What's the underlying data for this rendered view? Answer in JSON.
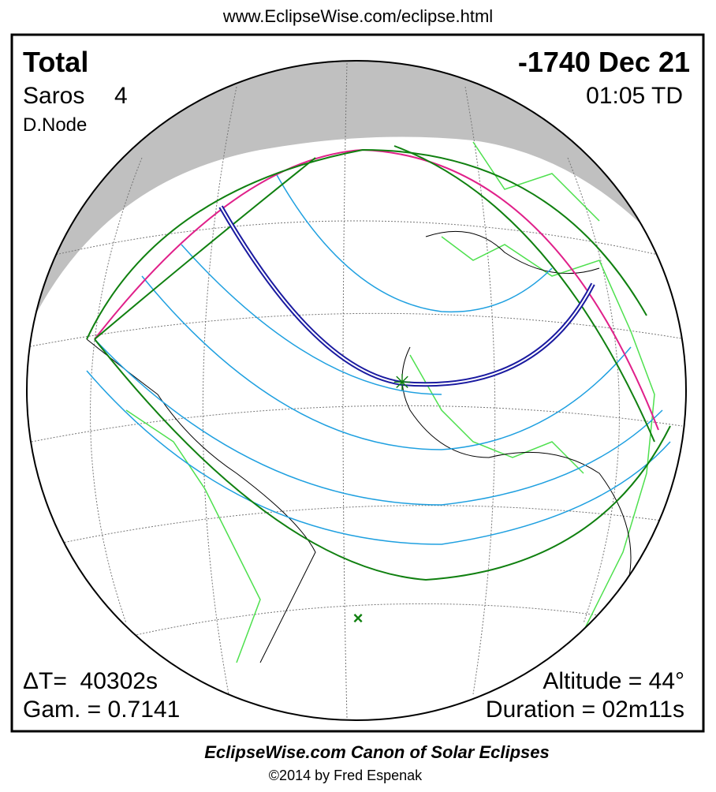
{
  "header": {
    "url": "www.EclipseWise.com/eclipse.html"
  },
  "eclipse": {
    "type": "Total",
    "date": "-1740 Dec 21",
    "saros_label": "Saros",
    "saros_number": "4",
    "time": "01:05 TD",
    "node": "D.Node",
    "delta_t": "ΔT=  40302s",
    "gamma": "Gam. = 0.7141",
    "altitude": "Altitude = 44°",
    "duration": "Duration = 02m11s"
  },
  "footer": {
    "title": "EclipseWise.com Canon of Solar Eclipses",
    "copyright": "©2014 by Fred Espenak"
  }
}
